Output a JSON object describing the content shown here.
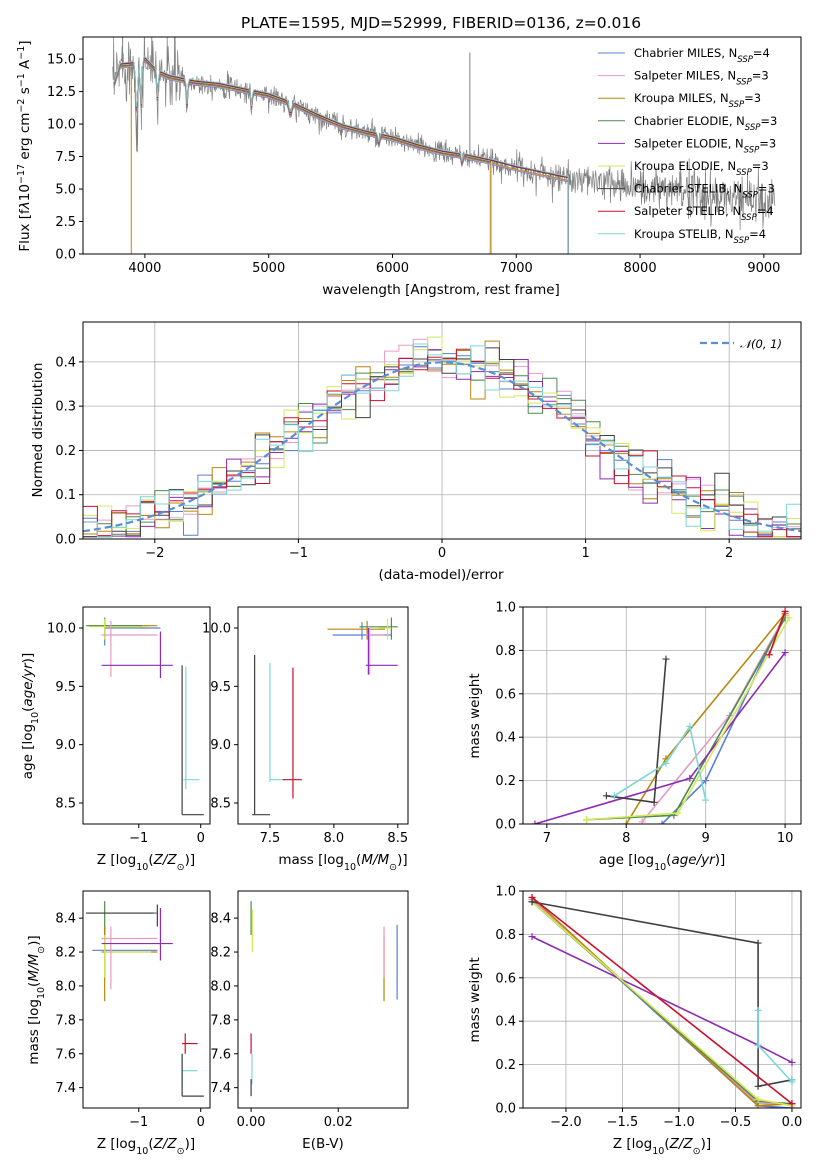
{
  "colors": {
    "chabrier_miles": "#5a7fd6",
    "salpeter_miles": "#e89ac7",
    "kroupa_miles": "#b8860b",
    "chabrier_elodie": "#4f8a4f",
    "salpeter_elodie": "#8e2ab4",
    "kroupa_elodie": "#d4e85a",
    "chabrier_stelib": "#404040",
    "salpeter_stelib": "#c8102e",
    "kroupa_stelib": "#7fd6d6",
    "spectrum": "#808080",
    "normal": "#5a8fd6"
  },
  "chart_data": [
    {
      "type": "line",
      "title": "PLATE=1595, MJD=52999, FIBERID=0136, z=0.016",
      "xlabel": "wavelength [Angstrom, rest frame]",
      "ylabel_parts": [
        "Flux [f",
        "λ",
        "10",
        "−17",
        " erg cm",
        "−2",
        " s",
        "−1",
        " A",
        "−1",
        "]"
      ],
      "xlim": [
        3500,
        9300
      ],
      "ylim": [
        0,
        16.7
      ],
      "xticks": [
        "4000",
        "5000",
        "6000",
        "7000",
        "8000",
        "9000"
      ],
      "yticks": [
        "0.0",
        "2.5",
        "5.0",
        "7.5",
        "10.0",
        "12.5",
        "15.0"
      ],
      "data_model": {
        "x": [
          3750,
          3800,
          3900,
          4000,
          4100,
          4200,
          4400,
          4600,
          4800,
          5000,
          5200,
          5400,
          5600,
          5800,
          6000,
          6200,
          6400,
          6600,
          6800,
          7000,
          7200,
          7400
        ],
        "y": [
          13.0,
          14.5,
          14.6,
          15.0,
          14.0,
          13.6,
          13.2,
          13.0,
          12.6,
          12.2,
          11.5,
          10.6,
          9.8,
          9.3,
          8.9,
          8.3,
          7.8,
          7.5,
          7.1,
          6.6,
          6.2,
          5.8
        ]
      },
      "model_extent": {
        "stelib_end": 7420,
        "miles_end": 7420
      },
      "legend": [
        {
          "imf": "Chabrier",
          "lib": "MILES",
          "n": "4",
          "key": "chabrier_miles"
        },
        {
          "imf": "Salpeter",
          "lib": "MILES",
          "n": "3",
          "key": "salpeter_miles"
        },
        {
          "imf": "Kroupa",
          "lib": "MILES",
          "n": "3",
          "key": "kroupa_miles"
        },
        {
          "imf": "Chabrier",
          "lib": "ELODIE",
          "n": "3",
          "key": "chabrier_elodie"
        },
        {
          "imf": "Salpeter",
          "lib": "ELODIE",
          "n": "3",
          "key": "salpeter_elodie"
        },
        {
          "imf": "Kroupa",
          "lib": "ELODIE",
          "n": "3",
          "key": "kroupa_elodie"
        },
        {
          "imf": "Chabrier",
          "lib": "STELIB",
          "n": "3",
          "key": "chabrier_stelib"
        },
        {
          "imf": "Salpeter",
          "lib": "STELIB",
          "n": "4",
          "key": "salpeter_stelib"
        },
        {
          "imf": "Kroupa",
          "lib": "STELIB",
          "n": "4",
          "key": "kroupa_stelib"
        }
      ],
      "legend_sub": "SSP",
      "legend_prefix": "N"
    },
    {
      "type": "histogram",
      "xlabel": "(data-model)/error",
      "ylabel": "Normed distribution",
      "xlim": [
        -2.5,
        2.5
      ],
      "ylim": [
        0,
        0.49
      ],
      "xticks": [
        "−2",
        "−1",
        "0",
        "1",
        "2"
      ],
      "yticks": [
        "0.0",
        "0.1",
        "0.2",
        "0.3",
        "0.4"
      ],
      "bin_width": 0.1,
      "legend": "𝒩(0, 1)",
      "grid": true
    },
    {
      "type": "errorbar",
      "xlabel_parts": [
        "Z [log",
        "10",
        "(",
        "Z/Z",
        "⊙",
        ")]"
      ],
      "ylabel_parts": [
        "age  [log",
        "10",
        "(",
        "age/yr",
        ")]"
      ],
      "xlim": [
        -1.9,
        0.15
      ],
      "ylim": [
        8.32,
        10.18
      ],
      "xticks": [
        "−1",
        "0"
      ],
      "yticks": [
        "8.5",
        "9.0",
        "9.5",
        "10.0"
      ]
    },
    {
      "type": "errorbar",
      "xlabel_parts": [
        "mass [log",
        "10",
        "(",
        "M/M",
        "⊙",
        ")]"
      ],
      "xlim": [
        7.25,
        8.58
      ],
      "ylim": [
        8.32,
        10.18
      ],
      "xticks": [
        "7.5",
        "8.0",
        "8.5"
      ],
      "yticks": [
        "8.5",
        "9.0",
        "9.5",
        "10.0"
      ]
    },
    {
      "type": "line",
      "xlabel_parts": [
        "age  [log",
        "10",
        "(",
        "age/yr",
        ")]"
      ],
      "ylabel": "mass weight",
      "xlim": [
        6.7,
        10.2
      ],
      "ylim": [
        0,
        1.0
      ],
      "xticks": [
        "7",
        "8",
        "9",
        "10"
      ],
      "yticks": [
        "0.0",
        "0.2",
        "0.4",
        "0.6",
        "0.8",
        "1.0"
      ],
      "series": [
        {
          "key": "chabrier_miles",
          "x": [
            8.45,
            9.0,
            10.0
          ],
          "y": [
            0.0,
            0.2,
            0.97
          ]
        },
        {
          "key": "salpeter_miles",
          "x": [
            8.2,
            9.3,
            10.0
          ],
          "y": [
            0.01,
            0.5,
            0.96
          ]
        },
        {
          "key": "kroupa_miles",
          "x": [
            8.0,
            8.5,
            10.0
          ],
          "y": [
            0.0,
            0.3,
            0.97
          ]
        },
        {
          "key": "chabrier_elodie",
          "x": [
            7.5,
            8.6,
            10.0
          ],
          "y": [
            0.02,
            0.04,
            0.95
          ]
        },
        {
          "key": "salpeter_elodie",
          "x": [
            6.85,
            8.8,
            10.0
          ],
          "y": [
            0.0,
            0.21,
            0.79
          ]
        },
        {
          "key": "kroupa_elodie",
          "x": [
            7.5,
            8.65,
            10.05
          ],
          "y": [
            0.02,
            0.05,
            0.95
          ]
        },
        {
          "key": "chabrier_stelib",
          "x": [
            7.75,
            8.35,
            8.5
          ],
          "y": [
            0.13,
            0.1,
            0.76
          ]
        },
        {
          "key": "salpeter_stelib",
          "x": [
            9.8,
            10.0
          ],
          "y": [
            0.78,
            0.98
          ]
        },
        {
          "key": "kroupa_stelib",
          "x": [
            7.85,
            8.5,
            8.8,
            9.0
          ],
          "y": [
            0.13,
            0.28,
            0.45,
            0.11
          ]
        }
      ]
    },
    {
      "type": "errorbar",
      "xlabel_parts": [
        "Z [log",
        "10",
        "(",
        "Z/Z",
        "⊙",
        ")]"
      ],
      "ylabel_parts": [
        "mass [log",
        "10",
        "(",
        "M/M",
        "⊙",
        ")]"
      ],
      "xlim": [
        -1.9,
        0.15
      ],
      "ylim": [
        7.28,
        8.56
      ],
      "xticks": [
        "−1",
        "0"
      ],
      "yticks": [
        "7.4",
        "7.6",
        "7.8",
        "8.0",
        "8.2",
        "8.4"
      ]
    },
    {
      "type": "errorbar",
      "xlabel": "E(B-V)",
      "xlim": [
        -0.003,
        0.036
      ],
      "ylim": [
        7.28,
        8.56
      ],
      "xticks": [
        "0.00",
        "0.02"
      ],
      "yticks": [
        "7.4",
        "7.6",
        "7.8",
        "8.0",
        "8.2",
        "8.4"
      ]
    },
    {
      "type": "line",
      "xlabel_parts": [
        "Z [log",
        "10",
        "(",
        "Z/Z",
        "⊙",
        ")]"
      ],
      "ylabel": "mass weight",
      "xlim": [
        -2.38,
        0.08
      ],
      "ylim": [
        0,
        1.0
      ],
      "xticks": [
        "−2.0",
        "−1.5",
        "−1.0",
        "−0.5",
        "0.0"
      ],
      "yticks": [
        "0.0",
        "0.2",
        "0.4",
        "0.6",
        "0.8",
        "1.0"
      ],
      "series": [
        {
          "key": "chabrier_miles",
          "x": [
            -2.3,
            -0.3,
            0.0
          ],
          "y": [
            0.96,
            0.01,
            0.0
          ]
        },
        {
          "key": "salpeter_miles",
          "x": [
            -2.3,
            -0.3,
            0.0
          ],
          "y": [
            0.96,
            0.02,
            0.02
          ]
        },
        {
          "key": "kroupa_miles",
          "x": [
            -2.3,
            -0.3,
            0.0
          ],
          "y": [
            0.97,
            0.01,
            0.02
          ]
        },
        {
          "key": "chabrier_elodie",
          "x": [
            -2.3,
            -0.3,
            0.0
          ],
          "y": [
            0.95,
            0.03,
            0.02
          ]
        },
        {
          "key": "salpeter_elodie",
          "x": [
            -2.3,
            -0.3,
            0.0
          ],
          "y": [
            0.79,
            0.29,
            0.21
          ]
        },
        {
          "key": "kroupa_elodie",
          "x": [
            -2.3,
            -0.3,
            0.0
          ],
          "y": [
            0.95,
            0.04,
            0.01
          ]
        },
        {
          "key": "chabrier_stelib",
          "x": [
            -2.3,
            -0.3,
            -0.3,
            0.0
          ],
          "y": [
            0.95,
            0.76,
            0.1,
            0.13
          ]
        },
        {
          "key": "salpeter_stelib",
          "x": [
            -2.3,
            0.0
          ],
          "y": [
            0.97,
            0.02
          ]
        },
        {
          "key": "kroupa_stelib",
          "x": [
            -0.3,
            -0.3,
            0.0,
            0.0
          ],
          "y": [
            0.45,
            0.29,
            0.12,
            0.13
          ]
        }
      ]
    }
  ]
}
